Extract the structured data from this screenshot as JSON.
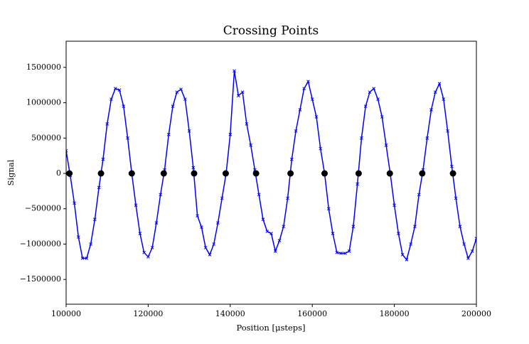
{
  "chart_data": {
    "type": "line",
    "title": "Crossing Points",
    "xlabel": "Position [μsteps]",
    "ylabel": "Signal",
    "xlim": [
      100000,
      200000
    ],
    "ylim": [
      -1850000,
      1870000
    ],
    "xticks": [
      100000,
      120000,
      140000,
      160000,
      180000,
      200000
    ],
    "yticks": [
      {
        "value": -1500000,
        "label": "−1500000"
      },
      {
        "value": -1000000,
        "label": "−1000000"
      },
      {
        "value": -500000,
        "label": "−500000"
      },
      0,
      500000,
      1000000,
      1500000
    ],
    "series": [
      {
        "color": "#0000ff",
        "marker": "x",
        "line": true,
        "x": [
          100000,
          101000,
          102000,
          103000,
          104000,
          105000,
          106000,
          107000,
          108000,
          109000,
          110000,
          111000,
          112000,
          113000,
          114000,
          115000,
          116000,
          117000,
          118000,
          119000,
          120000,
          121000,
          122000,
          123000,
          124000,
          125000,
          126000,
          127000,
          128000,
          129000,
          130000,
          131000,
          132000,
          133000,
          134000,
          135000,
          136000,
          137000,
          138000,
          139000,
          140000,
          141000,
          142000,
          143000,
          144000,
          145000,
          146000,
          147000,
          148000,
          149000,
          150000,
          151000,
          152000,
          153000,
          154000,
          155000,
          156000,
          157000,
          158000,
          159000,
          160000,
          161000,
          162000,
          163000,
          164000,
          165000,
          166000,
          167000,
          168000,
          169000,
          170000,
          171000,
          172000,
          173000,
          174000,
          175000,
          176000,
          177000,
          178000,
          179000,
          180000,
          181000,
          182000,
          183000,
          184000,
          185000,
          186000,
          187000,
          188000,
          189000,
          190000,
          191000,
          192000,
          193000,
          194000,
          195000,
          196000,
          197000,
          198000,
          199000,
          200000
        ],
        "values": [
          320000,
          -30000,
          -420000,
          -900000,
          -1200000,
          -1200000,
          -1000000,
          -650000,
          -200000,
          200000,
          700000,
          1050000,
          1200000,
          1180000,
          950000,
          500000,
          0,
          -450000,
          -850000,
          -1120000,
          -1180000,
          -1050000,
          -700000,
          -300000,
          50000,
          550000,
          950000,
          1150000,
          1190000,
          1050000,
          600000,
          80000,
          -600000,
          -760000,
          -1050000,
          -1150000,
          -1000000,
          -700000,
          -350000,
          0,
          550000,
          1450000,
          1100000,
          1150000,
          700000,
          400000,
          50000,
          -300000,
          -650000,
          -820000,
          -850000,
          -1100000,
          -950000,
          -750000,
          -350000,
          200000,
          600000,
          900000,
          1200000,
          1300000,
          1050000,
          800000,
          350000,
          0,
          -500000,
          -850000,
          -1120000,
          -1130000,
          -1130000,
          -1100000,
          -750000,
          -150000,
          500000,
          950000,
          1150000,
          1200000,
          1050000,
          800000,
          400000,
          0,
          -450000,
          -850000,
          -1150000,
          -1220000,
          -1000000,
          -750000,
          -300000,
          50000,
          500000,
          900000,
          1150000,
          1270000,
          1050000,
          600000,
          100000,
          -350000,
          -750000,
          -1000000,
          -1200000,
          -1100000,
          -920000
        ]
      },
      {
        "color": "#000000",
        "marker": "o",
        "line": false,
        "x": [
          100800,
          108500,
          116000,
          123800,
          131200,
          138900,
          146300,
          154700,
          163000,
          171300,
          178900,
          186800,
          194300
        ],
        "values": [
          0,
          0,
          0,
          0,
          0,
          0,
          0,
          0,
          0,
          0,
          0,
          0,
          0
        ]
      }
    ]
  }
}
